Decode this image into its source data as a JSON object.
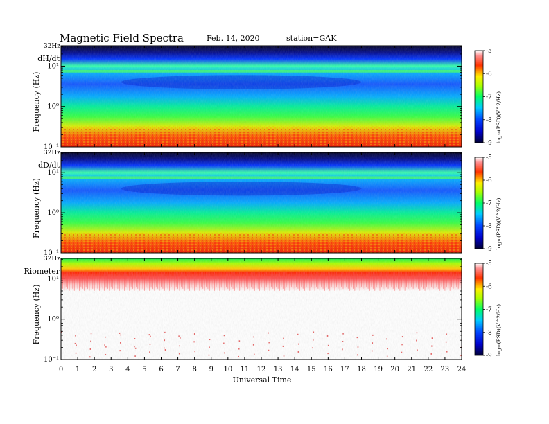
{
  "header": {
    "title": "Magnetic  Field  Spectra",
    "date": "Feb. 14, 2020",
    "station": "station=GAK"
  },
  "chart_data": [
    {
      "type": "heatmap",
      "panel_label": "dH/dt",
      "ylabel": "Frequency  (Hz)",
      "top_label": "32Hz",
      "yticks": [
        "10⁻¹",
        "10⁰",
        "10¹"
      ],
      "yscale": "log",
      "ylim": [
        0.1,
        32
      ],
      "colorbar": {
        "label": "log₁₀(PSD)(V^2/Hz)",
        "ticks": [
          -5,
          -6,
          -7,
          -8,
          -9
        ],
        "range": [
          -9,
          -5
        ]
      }
    },
    {
      "type": "heatmap",
      "panel_label": "dD/dt",
      "ylabel": "Frequency  (Hz)",
      "top_label": "32Hz",
      "yticks": [
        "10⁻¹",
        "10⁰",
        "10¹"
      ],
      "yscale": "log",
      "ylim": [
        0.1,
        32
      ],
      "colorbar": {
        "label": "log₁₀(PSD)(V^2/Hz)",
        "ticks": [
          -5,
          -6,
          -7,
          -8,
          -9
        ],
        "range": [
          -9,
          -5
        ]
      }
    },
    {
      "type": "heatmap",
      "panel_label": "Riometer",
      "ylabel": "Frequency  (Hz)",
      "top_label": "32Hz",
      "yticks": [
        "10⁻¹",
        "10⁰",
        "10¹"
      ],
      "yscale": "log",
      "ylim": [
        0.1,
        32
      ],
      "colorbar": {
        "label": "log₁₀(PSD)(V^2/Hz)",
        "ticks": [
          -5,
          -6,
          -7,
          -8,
          -9
        ],
        "range": [
          -9,
          -5
        ]
      }
    }
  ],
  "xaxis": {
    "label": "Universal Time",
    "ticks": [
      "0",
      "1",
      "2",
      "3",
      "4",
      "5",
      "6",
      "7",
      "8",
      "9",
      "10",
      "11",
      "12",
      "13",
      "14",
      "15",
      "16",
      "17",
      "18",
      "19",
      "20",
      "21",
      "22",
      "23",
      "24"
    ],
    "range": [
      0,
      24
    ]
  }
}
